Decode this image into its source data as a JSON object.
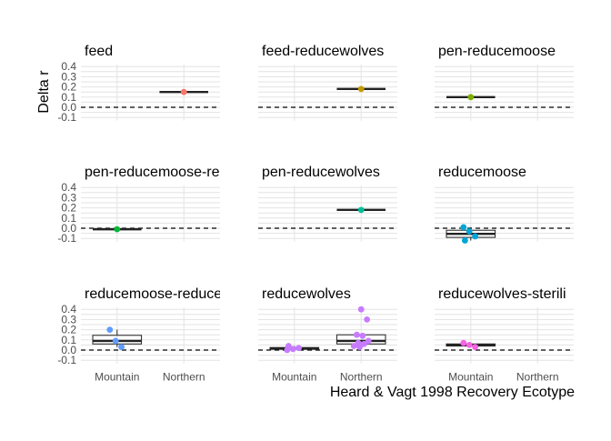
{
  "chart_data": {
    "type": "box",
    "xlabel": "Heard & Vagt 1998 Recovery Ecotype",
    "ylabel": "Delta r",
    "categories": [
      "Mountain",
      "Northern"
    ],
    "y_ticks": [
      "0.4",
      "0.3",
      "0.2",
      "0.1",
      "0.0",
      "-0.1"
    ],
    "ylim": [
      -0.13,
      0.42
    ],
    "reference_line": 0,
    "facets": [
      {
        "title": "feed",
        "color": "#F8766D",
        "points": [
          {
            "cat": "Northern",
            "y": 0.15
          }
        ]
      },
      {
        "title": "feed-reducewolves",
        "color": "#C49A00",
        "points": [
          {
            "cat": "Northern",
            "y": 0.18
          }
        ]
      },
      {
        "title": "pen-reducemoose",
        "color": "#7CAE00",
        "points": [
          {
            "cat": "Mountain",
            "y": 0.1
          }
        ]
      },
      {
        "title": "pen-reducemoose-re",
        "color": "#00B935",
        "points": [
          {
            "cat": "Mountain",
            "y": -0.01
          }
        ]
      },
      {
        "title": "pen-reducewolves",
        "color": "#00BF9A",
        "points": [
          {
            "cat": "Northern",
            "y": 0.18
          }
        ]
      },
      {
        "title": "reducemoose",
        "color": "#00A6D8",
        "points": [
          {
            "cat": "Mountain",
            "y": 0.01
          },
          {
            "cat": "Mountain",
            "y": -0.03
          },
          {
            "cat": "Mountain",
            "y": -0.08
          },
          {
            "cat": "Mountain",
            "y": -0.12
          }
        ]
      },
      {
        "title": "reducemoose-reduce",
        "color": "#619CFF",
        "points": [
          {
            "cat": "Mountain",
            "y": 0.2
          },
          {
            "cat": "Mountain",
            "y": 0.09
          },
          {
            "cat": "Mountain",
            "y": 0.03
          }
        ]
      },
      {
        "title": "reducewolves",
        "color": "#C77CFF",
        "points": [
          {
            "cat": "Mountain",
            "y": 0.0
          },
          {
            "cat": "Mountain",
            "y": 0.01
          },
          {
            "cat": "Mountain",
            "y": 0.02
          },
          {
            "cat": "Mountain",
            "y": 0.04
          },
          {
            "cat": "Northern",
            "y": 0.4
          },
          {
            "cat": "Northern",
            "y": 0.3
          },
          {
            "cat": "Northern",
            "y": 0.15
          },
          {
            "cat": "Northern",
            "y": 0.14
          },
          {
            "cat": "Northern",
            "y": 0.09
          },
          {
            "cat": "Northern",
            "y": 0.07
          },
          {
            "cat": "Northern",
            "y": 0.06
          },
          {
            "cat": "Northern",
            "y": 0.04
          },
          {
            "cat": "Northern",
            "y": 0.03
          }
        ]
      },
      {
        "title": "reducewolves-sterili",
        "color": "#F564E3",
        "points": [
          {
            "cat": "Mountain",
            "y": 0.07
          },
          {
            "cat": "Mountain",
            "y": 0.05
          },
          {
            "cat": "Mountain",
            "y": 0.03
          }
        ]
      }
    ]
  }
}
